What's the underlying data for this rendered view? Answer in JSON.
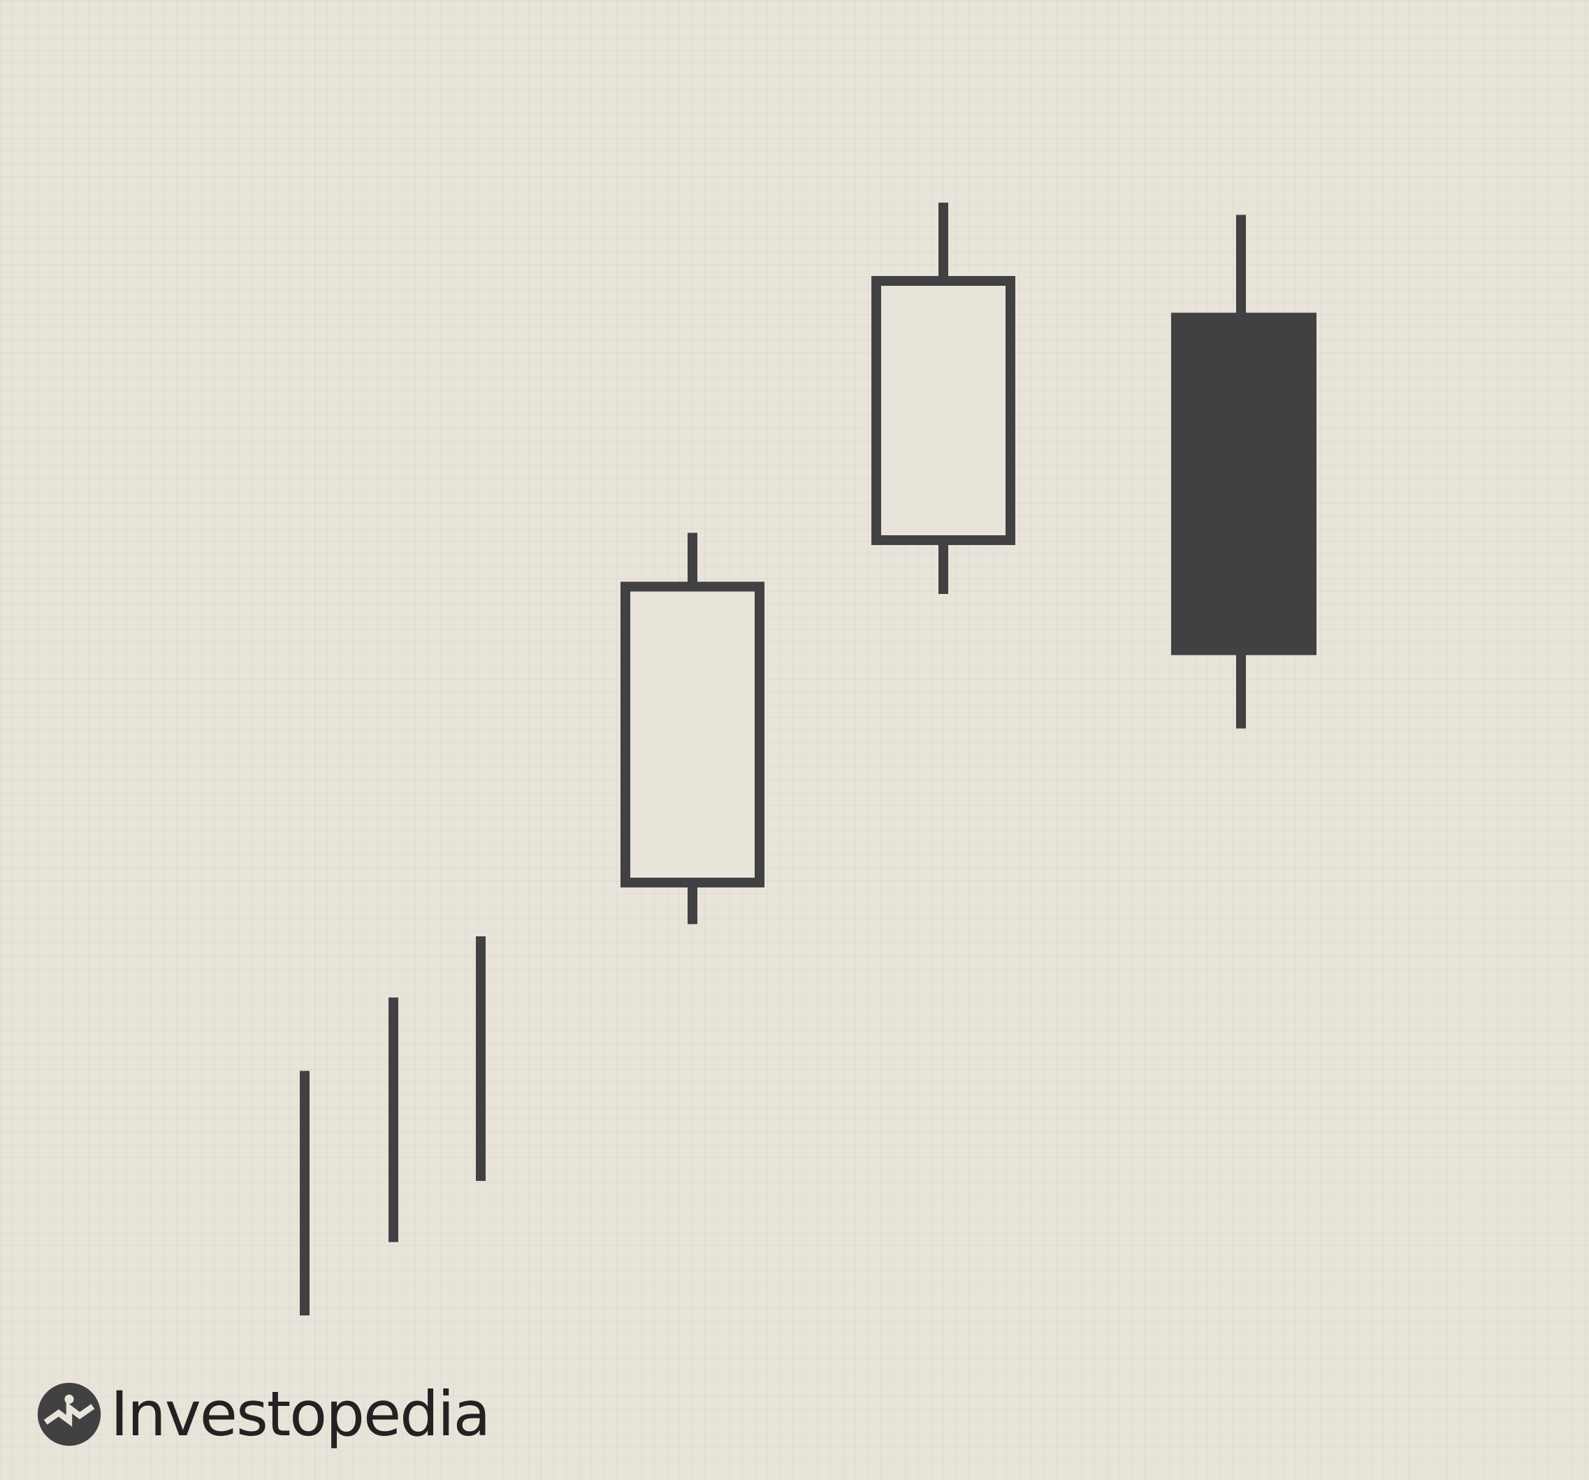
{
  "chart_data": {
    "type": "candlestick",
    "title": "",
    "xlabel": "",
    "ylabel": "",
    "ylim": [
      0,
      100
    ],
    "grid": true,
    "colors": {
      "background": "#e9e4da",
      "ink": "#414143",
      "bullish_fill": "#e9e4da",
      "bearish_fill": "#414143"
    },
    "bars": [
      {
        "kind": "range",
        "high": 21,
        "low": 1
      },
      {
        "kind": "range",
        "high": 27,
        "low": 7
      },
      {
        "kind": "range",
        "high": 32,
        "low": 12
      },
      {
        "kind": "candle",
        "direction": "up",
        "open": 36,
        "close": 61,
        "high": 65,
        "low": 33
      },
      {
        "kind": "candle",
        "direction": "up",
        "open": 64,
        "close": 86,
        "high": 92,
        "low": 60
      },
      {
        "kind": "candle",
        "direction": "down",
        "open": 83,
        "close": 55,
        "high": 91,
        "low": 49
      }
    ]
  },
  "brand": {
    "name": "Investopedia",
    "logo_icon": "investopedia-logo-icon"
  }
}
